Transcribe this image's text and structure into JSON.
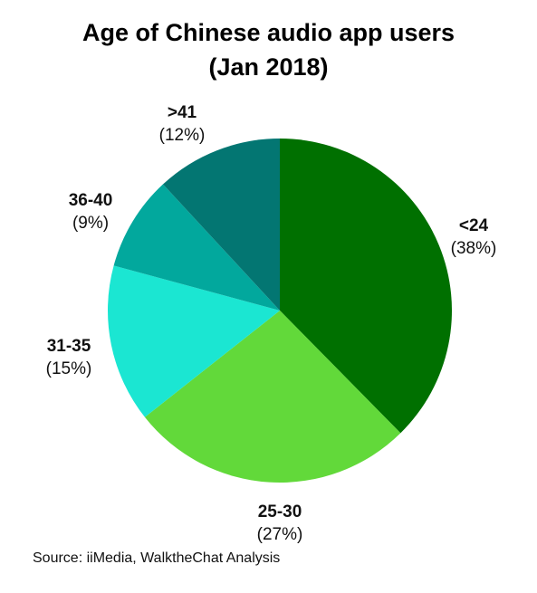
{
  "chart_data": {
    "type": "pie",
    "title_line1": "Age of Chinese audio app users",
    "title_line2": "(Jan 2018)",
    "categories": [
      "<24",
      "25-30",
      "31-35",
      "36-40",
      ">41"
    ],
    "values": [
      38,
      27,
      15,
      9,
      12
    ],
    "value_labels": [
      "(38%)",
      "(27%)",
      "(15%)",
      "(9%)",
      "(12%)"
    ],
    "colors": [
      "#007000",
      "#62D93A",
      "#1BE6D2",
      "#02A89D",
      "#037672"
    ],
    "start": "12 o'clock, clockwise",
    "legend": "none"
  },
  "source": "Source:  iiMedia, WalktheChat Analysis"
}
